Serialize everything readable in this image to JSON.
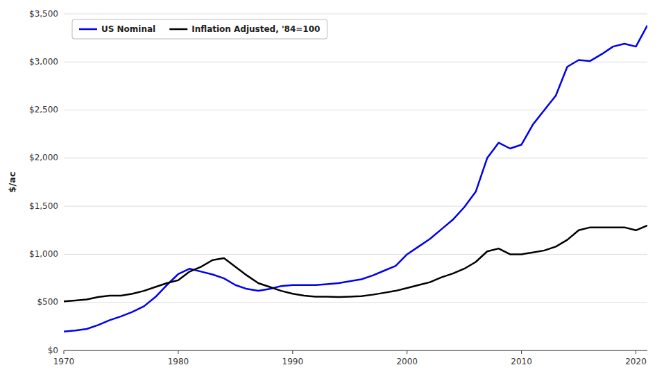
{
  "chart_data": {
    "type": "line",
    "ylabel": "$/ac",
    "x": [
      1970,
      1971,
      1972,
      1973,
      1974,
      1975,
      1976,
      1977,
      1978,
      1979,
      1980,
      1981,
      1982,
      1983,
      1984,
      1985,
      1986,
      1987,
      1988,
      1989,
      1990,
      1991,
      1992,
      1993,
      1994,
      1995,
      1996,
      1997,
      1998,
      1999,
      2000,
      2001,
      2002,
      2003,
      2004,
      2005,
      2006,
      2007,
      2008,
      2009,
      2010,
      2011,
      2012,
      2013,
      2014,
      2015,
      2016,
      2017,
      2018,
      2019,
      2020,
      2021
    ],
    "series": [
      {
        "name": "US Nominal",
        "color": "#0000ee",
        "values": [
          196,
          208,
          224,
          264,
          315,
          355,
          401,
          459,
          555,
          680,
          795,
          850,
          820,
          790,
          750,
          680,
          640,
          620,
          640,
          670,
          680,
          680,
          680,
          690,
          700,
          720,
          740,
          780,
          830,
          880,
          1000,
          1080,
          1160,
          1260,
          1360,
          1490,
          1650,
          2000,
          2160,
          2100,
          2140,
          2350,
          2500,
          2650,
          2950,
          3020,
          3010,
          3080,
          3160,
          3190,
          3160,
          3380
        ]
      },
      {
        "name": "Inflation Adjusted, '84=100",
        "color": "#000000",
        "values": [
          510,
          520,
          530,
          555,
          570,
          570,
          590,
          620,
          660,
          700,
          730,
          820,
          870,
          940,
          960,
          870,
          780,
          700,
          660,
          620,
          590,
          570,
          560,
          560,
          555,
          560,
          565,
          580,
          600,
          620,
          650,
          680,
          710,
          760,
          800,
          850,
          920,
          1030,
          1060,
          1000,
          1000,
          1020,
          1040,
          1080,
          1150,
          1250,
          1280,
          1280,
          1280,
          1280,
          1250,
          1300
        ]
      }
    ],
    "xlim": [
      1970,
      2021
    ],
    "ylim": [
      0,
      3500
    ],
    "xticks": [
      1970,
      1980,
      1990,
      2000,
      2010,
      2020
    ],
    "yticks": [
      {
        "value": 0,
        "label": "$0"
      },
      {
        "value": 500,
        "label": "$500"
      },
      {
        "value": 1000,
        "label": "$1,000"
      },
      {
        "value": 1500,
        "label": "$1,500"
      },
      {
        "value": 2000,
        "label": "$2,000"
      },
      {
        "value": 2500,
        "label": "$2,500"
      },
      {
        "value": 3000,
        "label": "$3,000"
      },
      {
        "value": 3500,
        "label": "$3,500"
      }
    ],
    "grid": true,
    "legend": "upper left"
  }
}
